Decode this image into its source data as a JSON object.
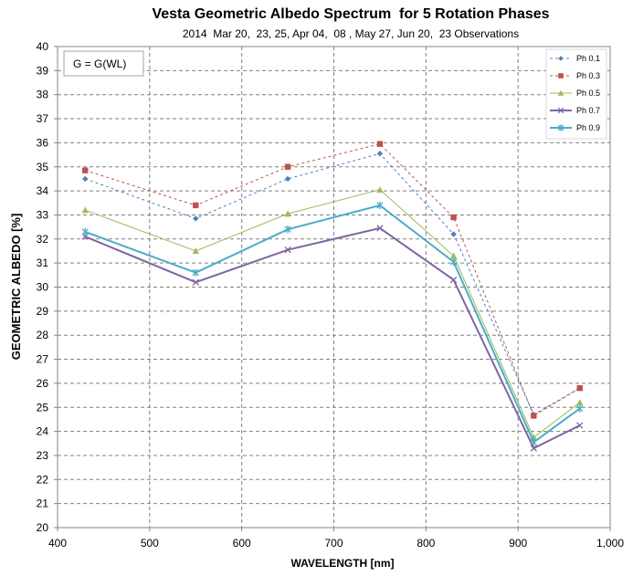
{
  "chart_data": {
    "type": "line",
    "title": "Vesta Geometric Albedo Spectrum  for 5 Rotation Phases",
    "subtitle": "2014  Mar 20,  23, 25, Apr 04,  08 , May 27, Jun 20,  23 Observations",
    "xlabel": "WAVELENGTH  [nm]",
    "ylabel": "GEOMETRIC ALBEDO [%]",
    "xlim": [
      400,
      1000
    ],
    "ylim": [
      20,
      40
    ],
    "xticks": [
      400,
      500,
      600,
      700,
      800,
      900,
      1000
    ],
    "xtick_labels": [
      "400",
      "500",
      "600",
      "700",
      "800",
      "900",
      "1,000"
    ],
    "yticks": [
      20,
      21,
      22,
      23,
      24,
      25,
      26,
      27,
      28,
      29,
      30,
      31,
      32,
      33,
      34,
      35,
      36,
      37,
      38,
      39,
      40
    ],
    "grid": true,
    "legend_position": "top-right",
    "annotation": "G = G(WL)",
    "x": [
      430,
      550,
      650,
      750,
      830,
      917,
      967
    ],
    "series": [
      {
        "name": "Ph 0.1",
        "values": [
          34.5,
          32.85,
          34.5,
          35.55,
          32.2,
          24.7,
          25.8
        ],
        "color": "#4f81bd",
        "marker": "diamond",
        "dash": "3,3",
        "width": 1
      },
      {
        "name": "Ph 0.3",
        "values": [
          34.85,
          33.4,
          35.0,
          35.95,
          32.9,
          24.65,
          25.8
        ],
        "color": "#c0504d",
        "marker": "square",
        "dash": "3,3",
        "width": 1
      },
      {
        "name": "Ph 0.5",
        "values": [
          33.2,
          31.5,
          33.05,
          34.05,
          31.3,
          23.75,
          25.2
        ],
        "color": "#9bbb59",
        "marker": "triangle",
        "dash": "",
        "width": 1
      },
      {
        "name": "Ph 0.7",
        "values": [
          32.1,
          30.2,
          31.55,
          32.45,
          30.3,
          23.3,
          24.25
        ],
        "color": "#8064a2",
        "marker": "x",
        "dash": "",
        "width": 2
      },
      {
        "name": "Ph 0.9",
        "values": [
          32.3,
          30.6,
          32.4,
          33.4,
          31.05,
          23.55,
          24.95
        ],
        "color": "#4bacc6",
        "marker": "star",
        "dash": "",
        "width": 2
      }
    ]
  }
}
